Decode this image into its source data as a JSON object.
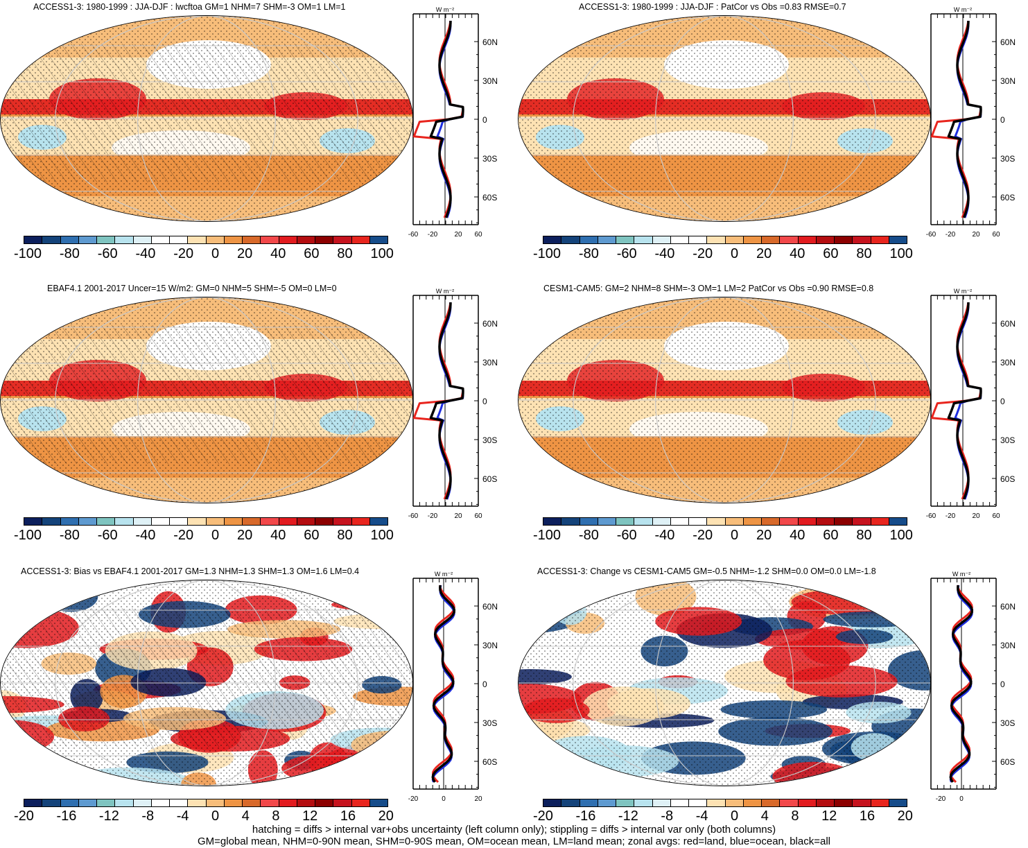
{
  "panels": [
    {
      "title": "ACCESS1-3: 1980-1999 : JJA-DJF : lwcftoa GM=1 NHM=7 SHM=-3 OM=1 LM=1",
      "colorbar_labels": [
        "-100",
        "-80",
        "-60",
        "-40",
        "-20",
        "0",
        "20",
        "40",
        "60",
        "80",
        "100"
      ],
      "zonal_units": "W m⁻²",
      "zonal_xticks": [
        "-60",
        "-20",
        "20",
        "60"
      ],
      "zonal_yticks": [
        "60N",
        "30N",
        "0",
        "30S",
        "60S"
      ]
    },
    {
      "title": "ACCESS1-3: 1980-1999 : JJA-DJF : PatCor vs Obs =0.83 RMSE=0.7",
      "colorbar_labels": [
        "-100",
        "-80",
        "-60",
        "-40",
        "-20",
        "0",
        "20",
        "40",
        "60",
        "80",
        "100"
      ],
      "zonal_units": "W m⁻²",
      "zonal_xticks": [
        "-60",
        "-20",
        "20",
        "60"
      ],
      "zonal_yticks": [
        "60N",
        "30N",
        "0",
        "30S",
        "60S"
      ]
    },
    {
      "title": "EBAF4.1 2001-2017 Uncer=15 W/m2: GM=0 NHM=5 SHM=-5 OM=0 LM=0",
      "colorbar_labels": [
        "-100",
        "-80",
        "-60",
        "-40",
        "-20",
        "0",
        "20",
        "40",
        "60",
        "80",
        "100"
      ],
      "zonal_units": "W m⁻²",
      "zonal_xticks": [
        "-60",
        "-20",
        "20",
        "60"
      ],
      "zonal_yticks": [
        "60N",
        "30N",
        "0",
        "30S",
        "60S"
      ]
    },
    {
      "title": "CESM1-CAM5: GM=2 NHM=8 SHM=-3 OM=1 LM=2 PatCor vs Obs =0.90 RMSE=0.8",
      "colorbar_labels": [
        "-100",
        "-80",
        "-60",
        "-40",
        "-20",
        "0",
        "20",
        "40",
        "60",
        "80",
        "100"
      ],
      "zonal_units": "W m⁻²",
      "zonal_xticks": [
        "-60",
        "-20",
        "20",
        "60"
      ],
      "zonal_yticks": [
        "60N",
        "30N",
        "0",
        "30S",
        "60S"
      ]
    },
    {
      "title": "ACCESS1-3: Bias vs EBAF4.1 2001-2017 GM=1.3 NHM=1.3 SHM=1.3 OM=1.6 LM=0.4",
      "colorbar_labels": [
        "-20",
        "-16",
        "-12",
        "-8",
        "-4",
        "0",
        "4",
        "8",
        "12",
        "16",
        "20"
      ],
      "zonal_units": "W m⁻²",
      "zonal_xticks": [
        "-20",
        "0",
        "20"
      ],
      "zonal_yticks": [
        "60N",
        "30N",
        "0",
        "30S",
        "60S"
      ]
    },
    {
      "title": "ACCESS1-3: Change vs CESM1-CAM5 GM=-0.5 NHM=-1.2 SHM=0.0 OM=0.0 LM=-1.8",
      "colorbar_labels": [
        "-20",
        "-16",
        "-12",
        "-8",
        "-4",
        "0",
        "4",
        "8",
        "12",
        "16",
        "20"
      ],
      "zonal_units": "W m⁻²",
      "zonal_xticks": [
        "-20",
        "0"
      ],
      "zonal_yticks": [
        "60N",
        "30N",
        "0",
        "30S",
        "60S"
      ]
    }
  ],
  "colormap": [
    "#0c1f5c",
    "#14437a",
    "#2f6fb0",
    "#5e9ad0",
    "#7fc4c0",
    "#b8e3ee",
    "#dff1f6",
    "#ffffff",
    "#ffffff",
    "#fde2b3",
    "#f7bd7a",
    "#ee9444",
    "#d8692a",
    "#f2484a",
    "#e21b1f",
    "#b40d10",
    "#8c0000",
    "#c6131e",
    "#e8251e",
    "#164c8a"
  ],
  "footer": {
    "line1": "hatching = diffs > internal var+obs uncertainty (left column only); stippling = diffs > internal var only (both columns)",
    "line2": "GM=global mean, NHM=0-90N mean, SHM=0-90S mean, OM=ocean mean, LM=land mean; zonal avgs: red=land, blue=ocean, black=all"
  }
}
